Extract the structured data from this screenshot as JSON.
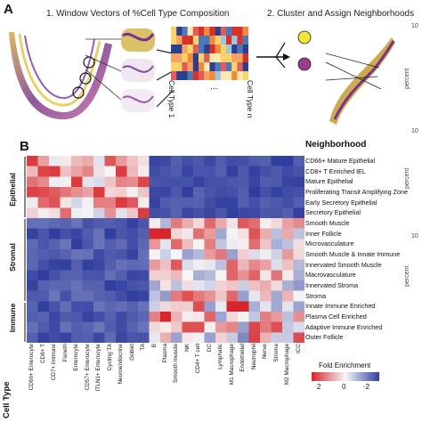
{
  "panel_a": {
    "letter": "A",
    "title_left": "1. Window Vectors of %Cell Type Composition",
    "title_right": "2. Cluster and Assign Neighborhoods",
    "cell_type_first": "Cell Type 1",
    "cell_type_last": "Cell Type n",
    "ellipsis": "..."
  },
  "panel_b": {
    "letter": "B",
    "neighborhood_header": "Neighborhood",
    "cell_type_header": "Cell Type",
    "groups": [
      "Epithelial",
      "Stromal",
      "Immune"
    ],
    "neighborhoods": [
      "CD66+ Mature Epithelial",
      "CD8+ T Enriched IEL",
      "Mature Epithelial",
      "Proliferating Transit Amplifying Zone",
      "Early Secretory Epithelial",
      "Secretory Epithelial",
      "Smooth Muscle",
      "Inner Follicle",
      "Microvasculature",
      "Smooth Muscle & Innate Immune",
      "Innervated Smooth Muscle",
      "Macrovasculature",
      "Innervated Stroma",
      "Stroma",
      "Innate Immune Enriched",
      "Plasma Cell Enriched",
      "Adaptive Immune Enriched",
      "Outer Follicle"
    ],
    "cell_types": [
      "CD66+ Enterocyte",
      "CD8+ T",
      "CD7+ Immune",
      "Paneth",
      "Enterocyte",
      "CD57+ Enterocyte",
      "ITLN1+ Enterocyte",
      "Cycling TA",
      "Neuroendocrine",
      "Goblet",
      "TA",
      "B",
      "Plasma",
      "Smooth muscle",
      "NK",
      "CD4+ T cell",
      "DC",
      "Lymphatic",
      "M1 Macrophage",
      "Endothelial",
      "Neutrophil",
      "Nerve",
      "Stroma",
      "M2 Macrophage",
      "ICC"
    ],
    "legend": {
      "title": "Fold Enrichment",
      "ticks": [
        "2",
        "0",
        "-2"
      ],
      "colors": {
        "high": "#d6262b",
        "mid": "#f7f7f7",
        "low": "#2f3d9e"
      }
    }
  },
  "right_panels": {
    "axis_label": "percent",
    "tick_labels": [
      "10",
      "10",
      "10"
    ]
  }
}
